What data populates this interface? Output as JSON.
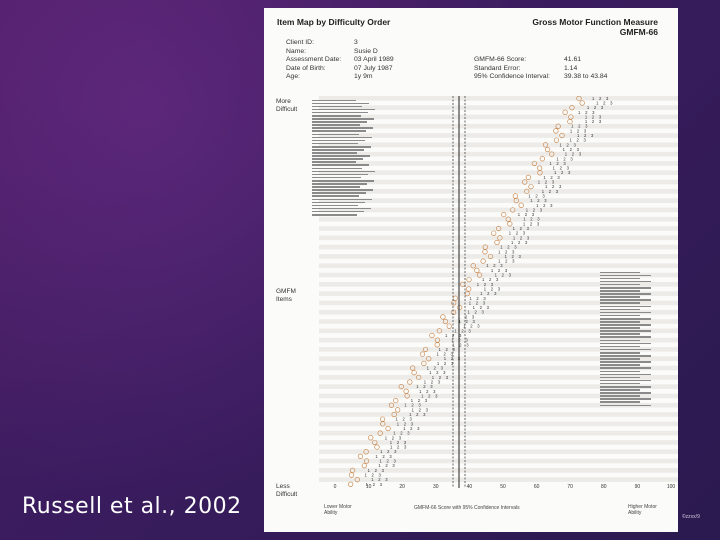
{
  "citation": "Russell et al., 2002",
  "document": {
    "title_left": "Item Map by Difficulty Order",
    "title_right_line1": "Gross Motor Function Measure",
    "title_right_line2": "GMFM-66",
    "client_info": [
      {
        "label": "Client ID:",
        "value": "3"
      },
      {
        "label": "Name:",
        "value": "Susie D"
      },
      {
        "label": "Assessment Date:",
        "value": "03 April 1989"
      },
      {
        "label": "Date of Birth:",
        "value": "07 July 1987"
      },
      {
        "label": "Age:",
        "value": "1y 9m"
      }
    ],
    "score_info": [
      {
        "label": "GMFM-66 Score:",
        "value": "41.61"
      },
      {
        "label": "Standard Error:",
        "value": "1.14"
      },
      {
        "label": "95% Confidence Interval:",
        "value": "39.38  to  43.84"
      }
    ],
    "side_labels": {
      "top": "More\nDifficult",
      "middle": "GMFM\nItems",
      "bottom": "Less\nDifficult"
    },
    "x_ticks": [
      "0",
      "10",
      "20",
      "30",
      "40",
      "50",
      "60",
      "70",
      "80",
      "90",
      "100"
    ],
    "x_label_left": "Lower Motor\nAbility",
    "x_label_center": "GMFM-66 Score with 95% Confidence Intervals",
    "x_label_right": "Higher Motor\nAbility",
    "score_value": 41.61,
    "ci": [
      39.38,
      43.84
    ]
  },
  "watermark": "©zzxx/9"
}
